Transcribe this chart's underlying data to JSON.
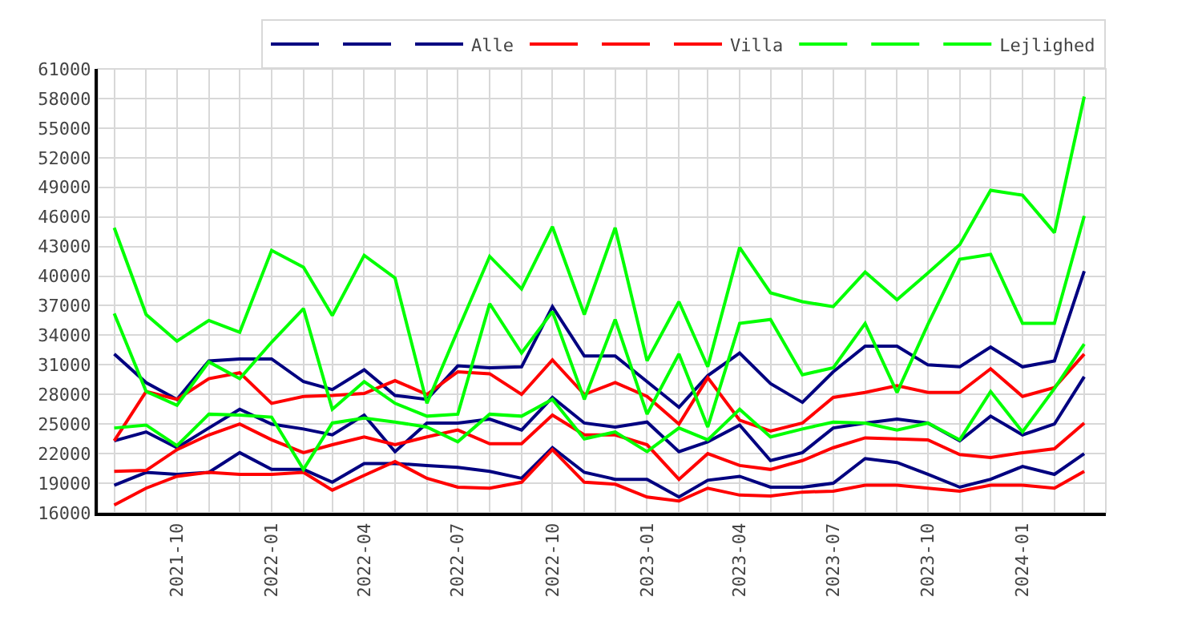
{
  "chart_data": {
    "type": "line",
    "x": [
      "2021-08",
      "2021-09",
      "2021-10",
      "2021-11",
      "2021-12",
      "2022-01",
      "2022-02",
      "2022-03",
      "2022-04",
      "2022-05",
      "2022-06",
      "2022-07",
      "2022-08",
      "2022-09",
      "2022-10",
      "2022-11",
      "2022-12",
      "2023-01",
      "2023-02",
      "2023-03",
      "2023-04",
      "2023-05",
      "2023-06",
      "2023-07",
      "2023-08",
      "2023-09",
      "2023-10",
      "2023-11",
      "2023-12",
      "2024-01",
      "2024-02",
      "2024-03"
    ],
    "series": [
      {
        "color": "#000080",
        "values": [
          18800,
          20100,
          19900,
          20100,
          22100,
          20400,
          20400,
          19100,
          21000,
          21000,
          20800,
          20600,
          20200,
          19500,
          22600,
          20100,
          19400,
          19400,
          17600,
          19300,
          19700,
          18600,
          18600,
          19000,
          21500,
          21100,
          19900,
          18600,
          19400,
          20700,
          19900,
          22000
        ]
      },
      {
        "color": "#000080",
        "values": [
          32100,
          29200,
          27500,
          31400,
          31600,
          31600,
          29300,
          28500,
          30500,
          27900,
          27500,
          30900,
          30700,
          30800,
          36900,
          31900,
          31900,
          29300,
          26700,
          29900,
          32200,
          29100,
          27200,
          30300,
          32900,
          32900,
          31000,
          30800,
          32800,
          30800,
          31400,
          40500
        ]
      },
      {
        "name": "Alle",
        "color": "#000080",
        "values": [
          23300,
          24200,
          22600,
          24600,
          26500,
          25000,
          24500,
          23900,
          25900,
          22200,
          25100,
          25100,
          25500,
          24400,
          27700,
          25100,
          24700,
          25200,
          22200,
          23200,
          24900,
          21300,
          22100,
          24600,
          25100,
          25500,
          25100,
          23300,
          25800,
          23900,
          25000,
          29800
        ]
      },
      {
        "color": "#ff0000",
        "values": [
          16800,
          18500,
          19700,
          20100,
          19900,
          19900,
          20100,
          18300,
          19800,
          21200,
          19500,
          18600,
          18500,
          19100,
          22400,
          19100,
          18900,
          17600,
          17200,
          18500,
          17800,
          17700,
          18100,
          18200,
          18800,
          18800,
          18500,
          18200,
          18800,
          18800,
          18500,
          20200
        ]
      },
      {
        "color": "#ff0000",
        "values": [
          23300,
          28300,
          27500,
          29600,
          30200,
          27100,
          27800,
          27900,
          28100,
          29400,
          28000,
          30300,
          30100,
          28000,
          31500,
          28000,
          29200,
          27800,
          25000,
          29700,
          25400,
          24300,
          25100,
          27700,
          28200,
          28900,
          28200,
          28200,
          30600,
          27800,
          28700,
          32100
        ]
      },
      {
        "name": "Villa",
        "color": "#ff0000",
        "values": [
          20200,
          20300,
          22400,
          23900,
          25000,
          23400,
          22100,
          22900,
          23700,
          22900,
          23700,
          24400,
          23000,
          23000,
          25900,
          23900,
          23900,
          22900,
          19400,
          22000,
          20800,
          20400,
          21300,
          22600,
          23600,
          23500,
          23400,
          21900,
          21600,
          22100,
          22500,
          25100
        ]
      },
      {
        "color": "#00ff00",
        "values": [
          24600,
          24900,
          22800,
          26000,
          25900,
          25700,
          20400,
          25100,
          25600,
          25200,
          24700,
          23200,
          26000,
          25800,
          27500,
          23500,
          24200,
          22200,
          24600,
          23400,
          26500,
          23700,
          24500,
          25200,
          25100,
          24400,
          25100,
          23400,
          28300,
          24200,
          28600,
          33100
        ]
      },
      {
        "color": "#00ff00",
        "values": [
          44900,
          36100,
          33400,
          35500,
          34300,
          42600,
          40900,
          36000,
          42100,
          39800,
          27100,
          34500,
          42000,
          38700,
          45000,
          36100,
          44900,
          31400,
          37400,
          30800,
          42900,
          38300,
          37400,
          36900,
          40400,
          37600,
          40300,
          43200,
          48700,
          48200,
          44400,
          58200
        ]
      },
      {
        "name": "Lejlighed",
        "color": "#00ff00",
        "values": [
          36200,
          28300,
          26900,
          31300,
          29600,
          33300,
          36700,
          26500,
          29300,
          27100,
          25800,
          26000,
          37200,
          32200,
          36400,
          27500,
          35600,
          26000,
          32100,
          24700,
          35200,
          35600,
          30000,
          30700,
          35200,
          28200,
          35100,
          41700,
          42200,
          35200,
          35200,
          46100
        ]
      }
    ],
    "xlim": [
      "2021-07-16",
      "2024-03-22"
    ],
    "xticks": [
      {
        "value": "2021-10",
        "label": "2021-10"
      },
      {
        "value": "2022-01",
        "label": "2022-01"
      },
      {
        "value": "2022-04",
        "label": "2022-04"
      },
      {
        "value": "2022-07",
        "label": "2022-07"
      },
      {
        "value": "2022-10",
        "label": "2022-10"
      },
      {
        "value": "2023-01",
        "label": "2023-01"
      },
      {
        "value": "2023-04",
        "label": "2023-04"
      },
      {
        "value": "2023-07",
        "label": "2023-07"
      },
      {
        "value": "2023-10",
        "label": "2023-10"
      },
      {
        "value": "2024-01",
        "label": "2024-01"
      }
    ],
    "ylim": [
      16000,
      61000
    ],
    "yticks": [
      16000,
      19000,
      22000,
      25000,
      28000,
      31000,
      34000,
      37000,
      40000,
      43000,
      46000,
      49000,
      52000,
      55000,
      58000,
      61000
    ],
    "grid": true,
    "legend": "top right",
    "marker": "none",
    "line_style": "solid"
  }
}
